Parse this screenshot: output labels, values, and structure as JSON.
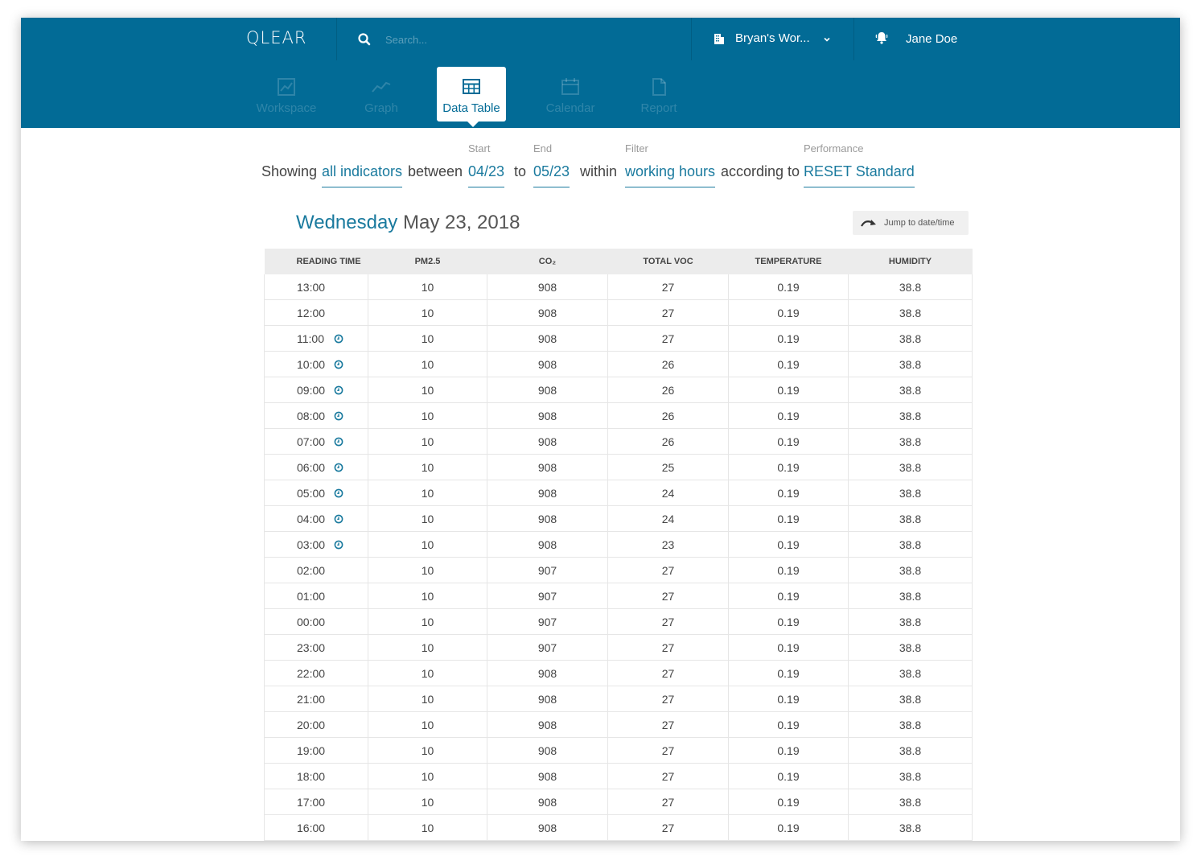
{
  "header": {
    "logo": "QLEAR",
    "search_placeholder": "Search...",
    "workspace_label": "Bryan's Wor...",
    "user_name": "Jane Doe"
  },
  "nav": {
    "tabs": [
      {
        "label": "Workspace",
        "icon": "workspace-icon",
        "active": false
      },
      {
        "label": "Graph",
        "icon": "graph-icon",
        "active": false
      },
      {
        "label": "Data Table",
        "icon": "table-icon",
        "active": true
      },
      {
        "label": "Calendar",
        "icon": "calendar-icon",
        "active": false
      },
      {
        "label": "Report",
        "icon": "report-icon",
        "active": false
      }
    ]
  },
  "filters": {
    "showing_word": "Showing",
    "indicators_value": "all indicators",
    "between_word": "between",
    "start_label": "Start",
    "start_value": "04/23",
    "to_word": "to",
    "end_label": "End",
    "end_value": "05/23",
    "within_word": "within",
    "filter_label": "Filter",
    "filter_value": "working hours",
    "according_word": "according to",
    "performance_label": "Performance",
    "performance_value": "RESET Standard"
  },
  "day": {
    "weekday": "Wednesday",
    "date": "May 23, 2018"
  },
  "jump_label": "Jump to date/time",
  "table": {
    "columns": [
      "READING TIME",
      "PM2.5",
      "CO₂",
      "TOTAL VOC",
      "TEMPERATURE",
      "HUMIDITY"
    ],
    "rows": [
      {
        "time": "13:00",
        "pm25": "10",
        "co2": "908",
        "voc": "27",
        "temp": "0.19",
        "humidity": "38.8",
        "clock": false,
        "day_break": false
      },
      {
        "time": "12:00",
        "pm25": "10",
        "co2": "908",
        "voc": "27",
        "temp": "0.19",
        "humidity": "38.8",
        "clock": false,
        "day_break": false
      },
      {
        "time": "11:00",
        "pm25": "10",
        "co2": "908",
        "voc": "27",
        "temp": "0.19",
        "humidity": "38.8",
        "clock": true,
        "day_break": false
      },
      {
        "time": "10:00",
        "pm25": "10",
        "co2": "908",
        "voc": "26",
        "temp": "0.19",
        "humidity": "38.8",
        "clock": true,
        "day_break": false
      },
      {
        "time": "09:00",
        "pm25": "10",
        "co2": "908",
        "voc": "26",
        "temp": "0.19",
        "humidity": "38.8",
        "clock": true,
        "day_break": false
      },
      {
        "time": "08:00",
        "pm25": "10",
        "co2": "908",
        "voc": "26",
        "temp": "0.19",
        "humidity": "38.8",
        "clock": true,
        "day_break": false
      },
      {
        "time": "07:00",
        "pm25": "10",
        "co2": "908",
        "voc": "26",
        "temp": "0.19",
        "humidity": "38.8",
        "clock": true,
        "day_break": false
      },
      {
        "time": "06:00",
        "pm25": "10",
        "co2": "908",
        "voc": "25",
        "temp": "0.19",
        "humidity": "38.8",
        "clock": true,
        "day_break": false
      },
      {
        "time": "05:00",
        "pm25": "10",
        "co2": "908",
        "voc": "24",
        "temp": "0.19",
        "humidity": "38.8",
        "clock": true,
        "day_break": false
      },
      {
        "time": "04:00",
        "pm25": "10",
        "co2": "908",
        "voc": "24",
        "temp": "0.19",
        "humidity": "38.8",
        "clock": true,
        "day_break": false
      },
      {
        "time": "03:00",
        "pm25": "10",
        "co2": "908",
        "voc": "23",
        "temp": "0.19",
        "humidity": "38.8",
        "clock": true,
        "day_break": false
      },
      {
        "time": "02:00",
        "pm25": "10",
        "co2": "907",
        "voc": "27",
        "temp": "0.19",
        "humidity": "38.8",
        "clock": false,
        "day_break": false
      },
      {
        "time": "01:00",
        "pm25": "10",
        "co2": "907",
        "voc": "27",
        "temp": "0.19",
        "humidity": "38.8",
        "clock": false,
        "day_break": false
      },
      {
        "time": "00:00",
        "pm25": "10",
        "co2": "907",
        "voc": "27",
        "temp": "0.19",
        "humidity": "38.8",
        "clock": false,
        "day_break": false
      },
      {
        "time": "23:00",
        "pm25": "10",
        "co2": "907",
        "voc": "27",
        "temp": "0.19",
        "humidity": "38.8",
        "clock": false,
        "day_break": false
      },
      {
        "time": "22:00",
        "pm25": "10",
        "co2": "908",
        "voc": "27",
        "temp": "0.19",
        "humidity": "38.8",
        "clock": false,
        "day_break": true
      },
      {
        "time": "21:00",
        "pm25": "10",
        "co2": "908",
        "voc": "27",
        "temp": "0.19",
        "humidity": "38.8",
        "clock": false,
        "day_break": false
      },
      {
        "time": "20:00",
        "pm25": "10",
        "co2": "908",
        "voc": "27",
        "temp": "0.19",
        "humidity": "38.8",
        "clock": false,
        "day_break": false
      },
      {
        "time": "19:00",
        "pm25": "10",
        "co2": "908",
        "voc": "27",
        "temp": "0.19",
        "humidity": "38.8",
        "clock": false,
        "day_break": false
      },
      {
        "time": "18:00",
        "pm25": "10",
        "co2": "908",
        "voc": "27",
        "temp": "0.19",
        "humidity": "38.8",
        "clock": false,
        "day_break": false
      },
      {
        "time": "17:00",
        "pm25": "10",
        "co2": "908",
        "voc": "27",
        "temp": "0.19",
        "humidity": "38.8",
        "clock": false,
        "day_break": false
      },
      {
        "time": "16:00",
        "pm25": "10",
        "co2": "908",
        "voc": "27",
        "temp": "0.19",
        "humidity": "38.8",
        "clock": false,
        "day_break": false
      }
    ]
  },
  "colors": {
    "brand": "#026b96",
    "accent_text": "#1a7a9e",
    "text": "#444444"
  }
}
